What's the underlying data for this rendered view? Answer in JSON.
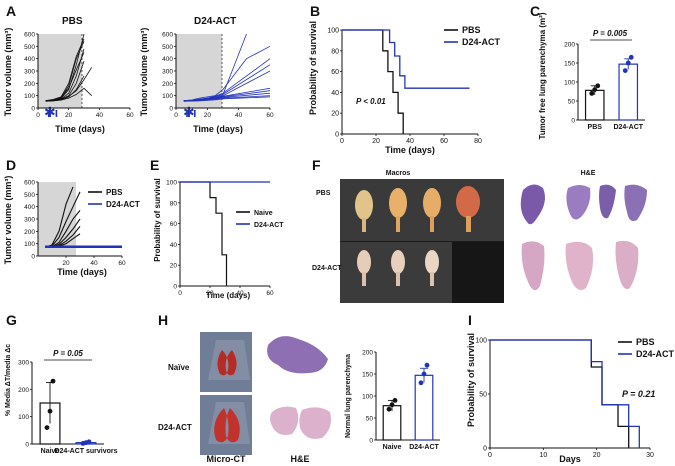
{
  "panels": {
    "A": {
      "letter": "A",
      "pbs": {
        "title": "PBS",
        "ylabel": "Tumor volume (mm³)",
        "xlabel": "Time (days)",
        "yticks": [
          "0",
          "100",
          "200",
          "300",
          "400",
          "500",
          "600"
        ],
        "xticks": [
          "0",
          "20",
          "40",
          "60"
        ],
        "marker": "✱"
      },
      "act": {
        "title": "D24-ACT",
        "ylabel": "Tumor volume (mm³)",
        "xlabel": "Time (days)",
        "yticks": [
          "0",
          "100",
          "200",
          "300",
          "400",
          "500",
          "600"
        ],
        "xticks": [
          "0",
          "20",
          "40",
          "60"
        ],
        "marker": "✱"
      }
    },
    "B": {
      "letter": "B",
      "ylabel": "Probability of survival",
      "xlabel": "Time (days)",
      "yticks": [
        "0",
        "20",
        "40",
        "60",
        "80",
        "100"
      ],
      "xticks": [
        "0",
        "20",
        "40",
        "60",
        "80"
      ],
      "legend": [
        "PBS",
        "D24-ACT"
      ],
      "pvalue": "P < 0.01"
    },
    "C": {
      "letter": "C",
      "ylabel": "Tumor free lung parenchyma (m²)",
      "yticks": [
        "0",
        "50",
        "100",
        "150",
        "200"
      ],
      "categories": [
        "PBS",
        "D24-ACT"
      ],
      "pvalue": "P = 0.005"
    },
    "D": {
      "letter": "D",
      "ylabel": "Tumor volume (mm³)",
      "xlabel": "Time (days)",
      "yticks": [
        "0",
        "100",
        "200",
        "300",
        "400",
        "500",
        "600"
      ],
      "xticks": [
        "20",
        "40",
        "60"
      ],
      "legend": [
        "PBS",
        "D24-ACT"
      ]
    },
    "E": {
      "letter": "E",
      "ylabel": "Probability of survival",
      "xlabel": "Time (days)",
      "yticks": [
        "0",
        "20",
        "40",
        "60",
        "80",
        "100"
      ],
      "xticks": [
        "0",
        "20",
        "40",
        "60"
      ],
      "legend": [
        "Naive",
        "D24-ACT"
      ]
    },
    "F": {
      "letter": "F",
      "macros_title": "Macros",
      "he_title": "H&E",
      "row_pbs": "PBS",
      "row_act": "D24-ACT"
    },
    "G": {
      "letter": "G",
      "ylabel": "% Media ΔT/media Δc",
      "yticks": [
        "0",
        "100",
        "200",
        "300"
      ],
      "categories": [
        "Naive",
        "D24-ACT survivors"
      ],
      "pvalue": "P = 0.05"
    },
    "H": {
      "letter": "H",
      "row_naive": "Naïve",
      "row_act": "D24-ACT",
      "microct": "Micro-CT",
      "he": "H&E",
      "ylabel": "Normal lung parenchyma",
      "yticks": [
        "0",
        "50",
        "100",
        "150",
        "200"
      ],
      "categories": [
        "Naive",
        "D24-ACT"
      ]
    },
    "I": {
      "letter": "I",
      "ylabel": "Probability of survival",
      "xlabel": "Days",
      "yticks": [
        "0",
        "50",
        "100"
      ],
      "xticks": [
        "0",
        "10",
        "20",
        "30"
      ],
      "legend": [
        "PBS",
        "D24-ACT"
      ],
      "pvalue": "P = 0.21"
    }
  },
  "colors": {
    "pbs": "#111111",
    "act": "#2233bb",
    "shade": "#d6d6d6"
  },
  "chart_data": [
    {
      "id": "A-PBS",
      "type": "line",
      "title": "PBS",
      "xlabel": "Time (days)",
      "ylabel": "Tumor volume (mm³)",
      "xlim": [
        0,
        60
      ],
      "ylim": [
        0,
        600
      ],
      "series": [
        {
          "name": "m1",
          "x": [
            5,
            10,
            15,
            20,
            25,
            30
          ],
          "y": [
            60,
            65,
            75,
            150,
            350,
            600
          ]
        },
        {
          "name": "m2",
          "x": [
            5,
            10,
            15,
            20,
            25,
            30
          ],
          "y": [
            60,
            70,
            90,
            200,
            420,
            560
          ]
        },
        {
          "name": "m3",
          "x": [
            5,
            10,
            15,
            20,
            25,
            30
          ],
          "y": [
            55,
            60,
            70,
            120,
            260,
            480
          ]
        },
        {
          "name": "m4",
          "x": [
            5,
            10,
            15,
            20,
            25,
            30
          ],
          "y": [
            60,
            62,
            80,
            180,
            400,
            540
          ]
        },
        {
          "name": "m5",
          "x": [
            5,
            10,
            15,
            20,
            25,
            30
          ],
          "y": [
            58,
            60,
            70,
            100,
            200,
            380
          ]
        },
        {
          "name": "m6",
          "x": [
            5,
            10,
            15,
            20,
            25,
            30
          ],
          "y": [
            60,
            64,
            85,
            160,
            310,
            450
          ]
        },
        {
          "name": "m7",
          "x": [
            5,
            10,
            15,
            20,
            25,
            30
          ],
          "y": [
            55,
            58,
            66,
            90,
            150,
            260
          ]
        },
        {
          "name": "m8",
          "x": [
            5,
            10,
            15,
            20,
            25,
            30,
            35
          ],
          "y": [
            60,
            62,
            70,
            95,
            140,
            230,
            330
          ]
        },
        {
          "name": "m9",
          "x": [
            5,
            10,
            15,
            20,
            25,
            30,
            35
          ],
          "y": [
            55,
            58,
            64,
            80,
            110,
            160,
            100
          ]
        }
      ]
    },
    {
      "id": "A-ACT",
      "type": "line",
      "title": "D24-ACT",
      "xlabel": "Time (days)",
      "ylabel": "Tumor volume (mm³)",
      "xlim": [
        0,
        60
      ],
      "ylim": [
        0,
        600
      ],
      "series": [
        {
          "name": "m1",
          "x": [
            5,
            10,
            15,
            20,
            25,
            30,
            45,
            60
          ],
          "y": [
            60,
            65,
            80,
            90,
            100,
            150,
            400,
            500
          ]
        },
        {
          "name": "m2",
          "x": [
            5,
            10,
            15,
            20,
            25,
            30,
            60
          ],
          "y": [
            60,
            62,
            70,
            80,
            95,
            120,
            400
          ]
        },
        {
          "name": "m3",
          "x": [
            5,
            10,
            15,
            20,
            25,
            30,
            60
          ],
          "y": [
            60,
            62,
            68,
            75,
            90,
            110,
            350
          ]
        },
        {
          "name": "m4",
          "x": [
            5,
            10,
            15,
            20,
            25,
            30,
            60
          ],
          "y": [
            55,
            60,
            66,
            72,
            85,
            100,
            300
          ]
        },
        {
          "name": "m5",
          "x": [
            5,
            10,
            15,
            20,
            25,
            30,
            45
          ],
          "y": [
            60,
            64,
            72,
            80,
            90,
            110,
            600
          ]
        },
        {
          "name": "m6",
          "x": [
            5,
            10,
            15,
            20,
            25,
            30,
            60
          ],
          "y": [
            58,
            60,
            64,
            70,
            80,
            95,
            160
          ]
        },
        {
          "name": "m7",
          "x": [
            5,
            10,
            15,
            20,
            25,
            30,
            60
          ],
          "y": [
            60,
            62,
            66,
            72,
            78,
            90,
            140
          ]
        },
        {
          "name": "m8",
          "x": [
            5,
            10,
            15,
            20,
            25,
            30,
            60
          ],
          "y": [
            55,
            58,
            62,
            68,
            75,
            85,
            120
          ]
        },
        {
          "name": "m9",
          "x": [
            5,
            10,
            15,
            20,
            25,
            30,
            60
          ],
          "y": [
            55,
            57,
            60,
            64,
            70,
            80,
            100
          ]
        },
        {
          "name": "m10",
          "x": [
            5,
            10,
            15,
            20,
            25,
            30,
            60
          ],
          "y": [
            55,
            56,
            58,
            62,
            66,
            75,
            90
          ]
        }
      ]
    },
    {
      "id": "B",
      "type": "line",
      "xlabel": "Time (days)",
      "ylabel": "Probability of survival",
      "xlim": [
        0,
        80
      ],
      "ylim": [
        0,
        100
      ],
      "series": [
        {
          "name": "PBS",
          "x": [
            0,
            24,
            24,
            27,
            27,
            30,
            30,
            33,
            33,
            36,
            36
          ],
          "y": [
            100,
            100,
            80,
            80,
            60,
            60,
            40,
            40,
            20,
            20,
            0
          ]
        },
        {
          "name": "D24-ACT",
          "x": [
            0,
            28,
            28,
            31,
            31,
            34,
            34,
            37,
            37,
            75
          ],
          "y": [
            100,
            100,
            88,
            88,
            75,
            75,
            56,
            56,
            44,
            44
          ]
        }
      ],
      "annotation": "P < 0.01"
    },
    {
      "id": "C",
      "type": "bar",
      "categories": [
        "PBS",
        "D24-ACT"
      ],
      "values": [
        78,
        147
      ],
      "errors": [
        12,
        14
      ],
      "points": [
        [
          70,
          80,
          90
        ],
        [
          130,
          150,
          165
        ]
      ],
      "ylabel": "Tumor free lung parenchyma (m²)",
      "ylim": [
        0,
        200
      ],
      "annotation": "P = 0.005"
    },
    {
      "id": "D",
      "type": "line",
      "xlabel": "Time (days)",
      "ylabel": "Tumor volume (mm³)",
      "xlim": [
        0,
        60
      ],
      "ylim": [
        0,
        600
      ],
      "series": [
        {
          "name": "PBS",
          "group": "PBS",
          "x": [
            5,
            10,
            15,
            20,
            25
          ],
          "y": [
            70,
            90,
            200,
            420,
            560
          ]
        },
        {
          "name": "PBS2",
          "group": "PBS",
          "x": [
            5,
            10,
            15,
            20,
            25,
            30
          ],
          "y": [
            70,
            80,
            150,
            280,
            400,
            520
          ]
        },
        {
          "name": "PBS3",
          "group": "PBS",
          "x": [
            5,
            10,
            15,
            20,
            25,
            30
          ],
          "y": [
            70,
            75,
            110,
            200,
            300,
            370
          ]
        },
        {
          "name": "PBS4",
          "group": "PBS",
          "x": [
            5,
            10,
            15,
            20,
            25,
            30
          ],
          "y": [
            70,
            72,
            95,
            150,
            220,
            300
          ]
        },
        {
          "name": "PBS5",
          "group": "PBS",
          "x": [
            5,
            10,
            15,
            20,
            25,
            30
          ],
          "y": [
            70,
            72,
            85,
            120,
            170,
            240
          ]
        },
        {
          "name": "PBS6",
          "group": "PBS",
          "x": [
            5,
            10,
            15,
            20,
            25,
            30
          ],
          "y": [
            70,
            71,
            80,
            100,
            140,
            180
          ]
        },
        {
          "name": "D24-ACT",
          "group": "D24-ACT",
          "x": [
            5,
            60
          ],
          "y": [
            70,
            70
          ]
        },
        {
          "name": "D24-ACT2",
          "group": "D24-ACT",
          "x": [
            5,
            60
          ],
          "y": [
            75,
            75
          ]
        },
        {
          "name": "D24-ACT3",
          "group": "D24-ACT",
          "x": [
            5,
            60
          ],
          "y": [
            80,
            80
          ]
        }
      ]
    },
    {
      "id": "E",
      "type": "line",
      "xlabel": "Time (days)",
      "ylabel": "Probability of survival",
      "xlim": [
        0,
        60
      ],
      "ylim": [
        0,
        100
      ],
      "series": [
        {
          "name": "Naive",
          "x": [
            0,
            20,
            20,
            24,
            24,
            28,
            28,
            31,
            31
          ],
          "y": [
            100,
            100,
            85,
            85,
            70,
            70,
            30,
            30,
            0
          ]
        },
        {
          "name": "D24-ACT",
          "x": [
            0,
            60
          ],
          "y": [
            100,
            100
          ]
        }
      ]
    },
    {
      "id": "G",
      "type": "bar",
      "categories": [
        "Naive",
        "D24-ACT survivors"
      ],
      "values": [
        150,
        5
      ],
      "errors": [
        75,
        3
      ],
      "points": [
        [
          60,
          120,
          230
        ],
        [
          2,
          5,
          8
        ]
      ],
      "ylabel": "% Media ΔT/media Δc",
      "ylim": [
        0,
        300
      ],
      "annotation": "P = 0.05"
    },
    {
      "id": "H",
      "type": "bar",
      "categories": [
        "Naive",
        "D24-ACT"
      ],
      "values": [
        78,
        147
      ],
      "errors": [
        12,
        16
      ],
      "points": [
        [
          70,
          80,
          90
        ],
        [
          130,
          150,
          170
        ]
      ],
      "ylabel": "Normal lung parenchyma",
      "ylim": [
        0,
        200
      ]
    },
    {
      "id": "I",
      "type": "line",
      "xlabel": "Days",
      "ylabel": "Probability of survival",
      "xlim": [
        0,
        30
      ],
      "ylim": [
        0,
        100
      ],
      "series": [
        {
          "name": "PBS",
          "x": [
            0,
            19,
            19,
            21,
            21,
            24,
            24,
            26,
            26
          ],
          "y": [
            100,
            100,
            75,
            75,
            40,
            40,
            20,
            20,
            0
          ]
        },
        {
          "name": "D24-ACT",
          "x": [
            0,
            19,
            19,
            21,
            21,
            26,
            26,
            28,
            28
          ],
          "y": [
            100,
            100,
            80,
            80,
            40,
            40,
            20,
            20,
            0
          ]
        }
      ],
      "annotation": "P = 0.21"
    }
  ]
}
